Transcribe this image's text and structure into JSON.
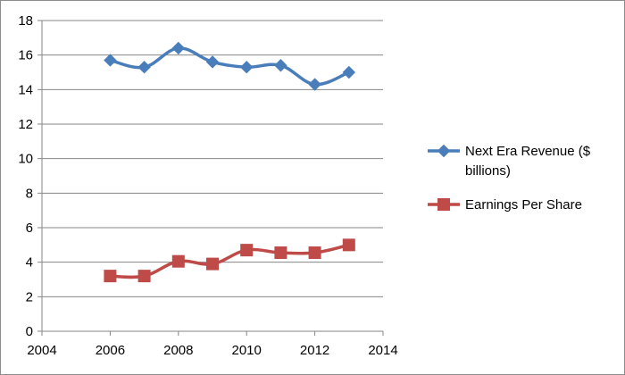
{
  "chart_data": {
    "type": "line",
    "title": "",
    "xlabel": "",
    "ylabel": "",
    "xlim": [
      2004,
      2014
    ],
    "ylim": [
      0,
      18
    ],
    "x_ticks": [
      2004,
      2006,
      2008,
      2010,
      2012,
      2014
    ],
    "y_ticks": [
      0,
      2,
      4,
      6,
      8,
      10,
      12,
      14,
      16,
      18
    ],
    "grid": "horizontal major gridlines",
    "legend_position": "right",
    "series": [
      {
        "name": "Next Era Revenue ($ billions)",
        "legend_lines": [
          "Next Era Revenue ($",
          "billions)"
        ],
        "color": "#4a7ebb",
        "marker": "diamond",
        "x": [
          2006,
          2007,
          2008,
          2009,
          2010,
          2011,
          2012,
          2013
        ],
        "y": [
          15.7,
          15.3,
          16.4,
          15.6,
          15.3,
          15.4,
          14.3,
          15.0
        ]
      },
      {
        "name": "Earnings Per Share",
        "legend_lines": [
          "Earnings Per Share"
        ],
        "color": "#be4b48",
        "marker": "square",
        "x": [
          2006,
          2007,
          2008,
          2009,
          2010,
          2011,
          2012,
          2013
        ],
        "y": [
          3.2,
          3.2,
          4.05,
          3.9,
          4.7,
          4.55,
          4.55,
          5.0
        ]
      }
    ]
  }
}
